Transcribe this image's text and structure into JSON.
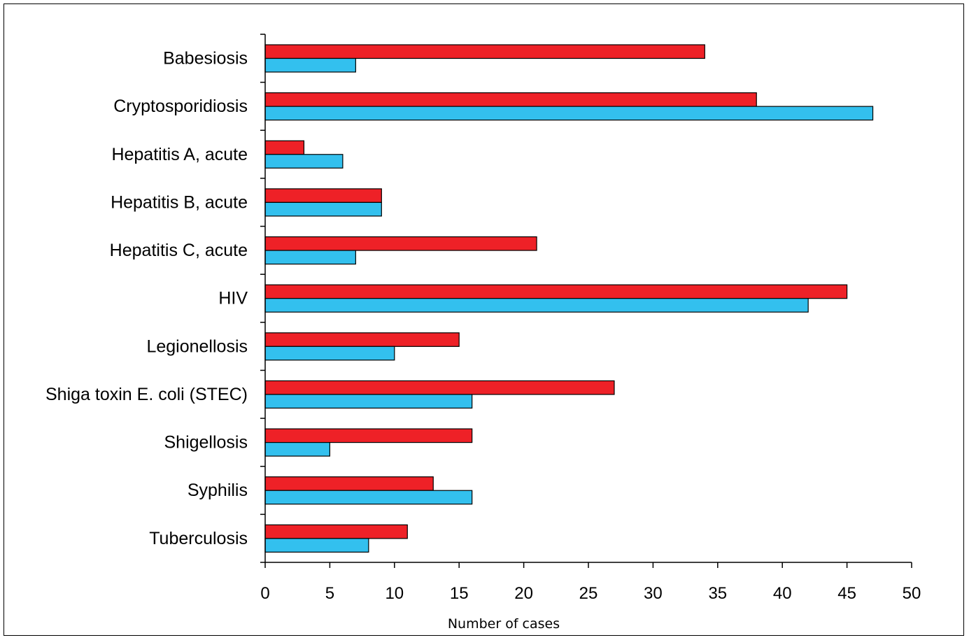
{
  "chart_data": {
    "type": "bar",
    "orientation": "horizontal",
    "title": "",
    "xlabel": "Number of cases",
    "ylabel": "",
    "xlim": [
      0,
      50
    ],
    "xticks": [
      0,
      5,
      10,
      15,
      20,
      25,
      30,
      35,
      40,
      45,
      50
    ],
    "grid": false,
    "legend": "none",
    "categories": [
      "Babesiosis",
      "Cryptosporidiosis",
      "Hepatitis A, acute",
      "Hepatitis B, acute",
      "Hepatitis C, acute",
      "HIV",
      "Legionellosis",
      "Shiga toxin E. coli (STEC)",
      "Shigellosis",
      "Syphilis",
      "Tuberculosis"
    ],
    "series": [
      {
        "color": "#ee2127",
        "values": [
          34,
          38,
          3,
          9,
          21,
          45,
          15,
          27,
          16,
          13,
          11
        ]
      },
      {
        "color": "#33c0ee",
        "values": [
          7,
          47,
          6,
          9,
          7,
          42,
          10,
          16,
          5,
          16,
          8
        ]
      }
    ]
  }
}
